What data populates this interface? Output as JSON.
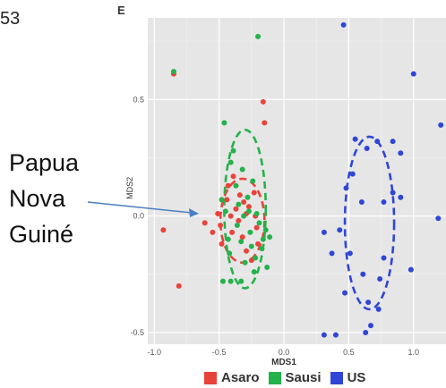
{
  "corner_text": "53",
  "top_glyph": "E",
  "annotation": {
    "lines": [
      "Papua",
      "Nova",
      "Guiné"
    ]
  },
  "chart_data": {
    "type": "scatter",
    "title": "",
    "xlabel": "MDS1",
    "ylabel": "MDS2",
    "xlim": [
      -1.05,
      1.25
    ],
    "ylim": [
      -0.55,
      0.85
    ],
    "xticks": [
      -1.0,
      -0.5,
      0.0,
      0.5,
      1.0
    ],
    "yticks": [
      -0.5,
      0.0,
      0.5
    ],
    "xtick_labels": [
      "-1.0",
      "-0.5",
      "0.0",
      "0.5",
      "1.0"
    ],
    "ytick_labels": [
      "-0.5",
      "0.0",
      "0.5"
    ],
    "grid": true,
    "legend": "bottom",
    "series": [
      {
        "name": "Asaro",
        "color": "#e8433a",
        "points": [
          [
            -0.93,
            -0.06
          ],
          [
            -0.81,
            -0.3
          ],
          [
            -0.61,
            -0.03
          ],
          [
            -0.55,
            -0.07
          ],
          [
            -0.51,
            0.01
          ],
          [
            -0.49,
            -0.04
          ],
          [
            -0.48,
            -0.12
          ],
          [
            -0.44,
            0.07
          ],
          [
            -0.43,
            0.13
          ],
          [
            -0.41,
            0.0
          ],
          [
            -0.4,
            -0.07
          ],
          [
            -0.39,
            0.17
          ],
          [
            -0.37,
            0.03
          ],
          [
            -0.35,
            -0.02
          ],
          [
            -0.34,
            0.09
          ],
          [
            -0.32,
            -0.09
          ],
          [
            -0.31,
            0.06
          ],
          [
            -0.29,
            0.01
          ],
          [
            -0.29,
            -0.15
          ],
          [
            -0.27,
            0.04
          ],
          [
            -0.25,
            -0.19
          ],
          [
            -0.23,
            0.1
          ],
          [
            -0.22,
            0.0
          ],
          [
            -0.21,
            -0.05
          ],
          [
            -0.2,
            -0.12
          ],
          [
            -0.16,
            0.49
          ],
          [
            -0.15,
            0.4
          ],
          [
            -0.85,
            0.61
          ]
        ],
        "ellipse": {
          "cx": -0.32,
          "cy": -0.02,
          "rx": 0.17,
          "ry": 0.18
        }
      },
      {
        "name": "Sausi",
        "color": "#24b24a",
        "points": [
          [
            -0.85,
            0.62
          ],
          [
            -0.46,
            0.4
          ],
          [
            -0.48,
            0.07
          ],
          [
            -0.45,
            0.02
          ],
          [
            -0.43,
            -0.1
          ],
          [
            -0.42,
            -0.16
          ],
          [
            -0.41,
            0.23
          ],
          [
            -0.39,
            0.28
          ],
          [
            -0.37,
            0.13
          ],
          [
            -0.36,
            -0.04
          ],
          [
            -0.35,
            0.05
          ],
          [
            -0.33,
            -0.11
          ],
          [
            -0.32,
            0.2
          ],
          [
            -0.31,
            0.0
          ],
          [
            -0.3,
            -0.2
          ],
          [
            -0.28,
            0.08
          ],
          [
            -0.27,
            0.02
          ],
          [
            -0.26,
            -0.07
          ],
          [
            -0.25,
            -0.13
          ],
          [
            -0.24,
            0.15
          ],
          [
            -0.23,
            -0.24
          ],
          [
            -0.22,
            -0.18
          ],
          [
            -0.21,
            0.01
          ],
          [
            -0.2,
            0.77
          ],
          [
            -0.19,
            -0.03
          ],
          [
            -0.17,
            -0.14
          ],
          [
            -0.16,
            -0.1
          ],
          [
            -0.14,
            -0.06
          ],
          [
            -0.13,
            -0.22
          ],
          [
            -0.11,
            -0.09
          ],
          [
            -0.47,
            -0.28
          ],
          [
            -0.41,
            -0.28
          ],
          [
            -0.33,
            -0.28
          ]
        ],
        "ellipse": {
          "cx": -0.3,
          "cy": 0.03,
          "rx": 0.16,
          "ry": 0.34
        }
      },
      {
        "name": "US",
        "color": "#2f46d6",
        "points": [
          [
            0.46,
            0.82
          ],
          [
            1.0,
            0.61
          ],
          [
            1.21,
            0.39
          ],
          [
            0.55,
            0.33
          ],
          [
            0.72,
            0.32
          ],
          [
            0.84,
            0.32
          ],
          [
            0.64,
            0.29
          ],
          [
            0.9,
            0.27
          ],
          [
            0.53,
            0.18
          ],
          [
            0.48,
            0.12
          ],
          [
            0.84,
            0.1
          ],
          [
            0.6,
            0.06
          ],
          [
            0.77,
            0.06
          ],
          [
            0.9,
            0.08
          ],
          [
            0.43,
            -0.06
          ],
          [
            1.19,
            -0.01
          ],
          [
            0.31,
            -0.07
          ],
          [
            0.37,
            -0.16
          ],
          [
            0.51,
            -0.16
          ],
          [
            0.77,
            -0.18
          ],
          [
            0.61,
            -0.25
          ],
          [
            0.98,
            -0.23
          ],
          [
            0.74,
            -0.27
          ],
          [
            0.47,
            -0.33
          ],
          [
            0.65,
            -0.37
          ],
          [
            0.73,
            -0.4
          ],
          [
            0.67,
            -0.47
          ],
          [
            0.63,
            -0.5
          ],
          [
            0.4,
            -0.51
          ],
          [
            0.31,
            -0.51
          ]
        ],
        "ellipse": {
          "cx": 0.66,
          "cy": -0.03,
          "rx": 0.19,
          "ry": 0.37
        }
      }
    ]
  }
}
